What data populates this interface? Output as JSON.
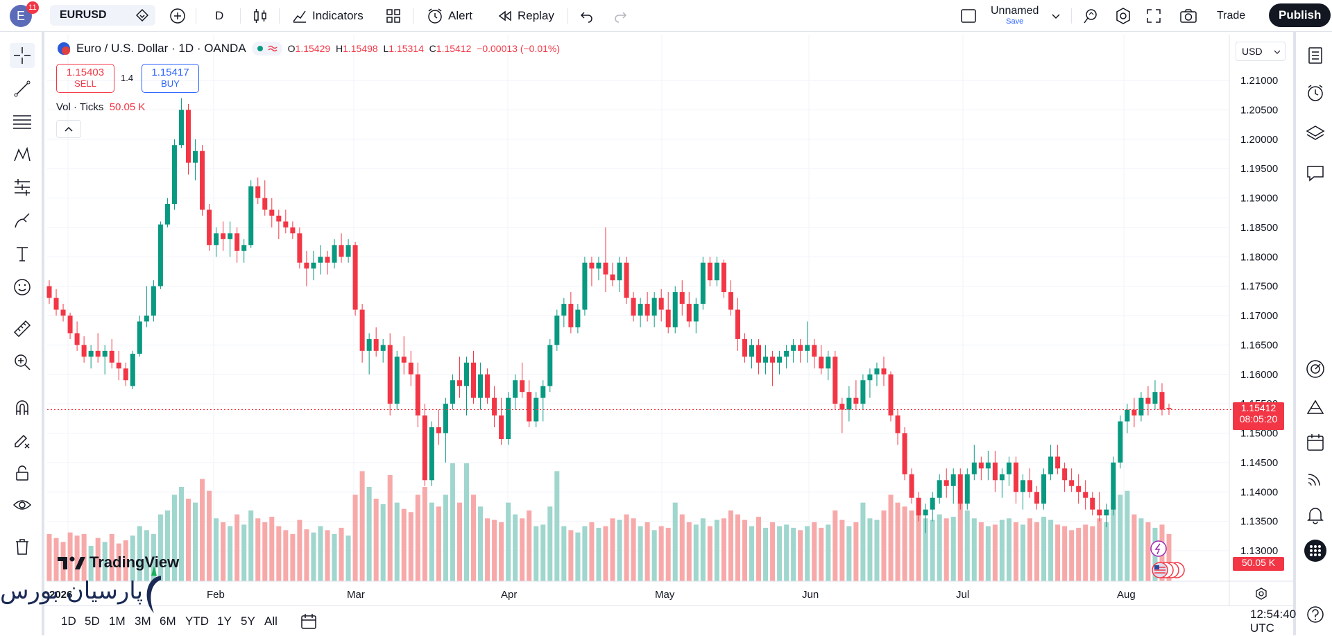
{
  "header": {
    "avatar_letter": "E",
    "notification_count": "11",
    "symbol": "EURUSD",
    "interval": "D",
    "indicators_label": "Indicators",
    "alert_label": "Alert",
    "replay_label": "Replay",
    "layout_name": "Unnamed",
    "layout_save": "Save",
    "trade_label": "Trade",
    "publish_label": "Publish"
  },
  "legend": {
    "title": "Euro / U.S. Dollar · 1D · OANDA",
    "o_label": "O",
    "o": "1.15429",
    "h_label": "H",
    "h": "1.15498",
    "l_label": "L",
    "l": "1.15314",
    "c_label": "C",
    "c": "1.15412",
    "change": "−0.00013 (−0.01%)"
  },
  "trade_panel": {
    "sell_price": "1.15403",
    "sell_label": "SELL",
    "spread": "1.4",
    "buy_price": "1.15417",
    "buy_label": "BUY"
  },
  "volume_legend": {
    "name": "Vol · Ticks",
    "value": "50.05 K"
  },
  "price_axis": {
    "currency": "USD",
    "ticks": [
      "1.21000",
      "1.20500",
      "1.20000",
      "1.19500",
      "1.19000",
      "1.18500",
      "1.18000",
      "1.17500",
      "1.17000",
      "1.16500",
      "1.16000",
      "1.15500",
      "1.15000",
      "1.14500",
      "1.14000",
      "1.13500",
      "1.13000"
    ],
    "last_price": "1.15412",
    "countdown": "08:05:20",
    "volume_tag": "50.05 K"
  },
  "time_axis": {
    "labels": [
      "2026",
      "Feb",
      "Mar",
      "Apr",
      "May",
      "Jun",
      "Jul",
      "Aug"
    ]
  },
  "bottom": {
    "ranges": [
      "1D",
      "5D",
      "1M",
      "3M",
      "6M",
      "YTD",
      "1Y",
      "5Y",
      "All"
    ],
    "clock": "12:54:40 UTC"
  },
  "branding": {
    "tv_logo": "TradingView",
    "watermark": "پارسیان بورس"
  },
  "colors": {
    "up": "#089981",
    "down": "#f23645",
    "up_vol": "#9fd6cd",
    "down_vol": "#f7a9a9",
    "accent": "#2962ff"
  },
  "chart_data": {
    "type": "candlestick",
    "symbol": "EURUSD",
    "timeframe": "1D",
    "ylim": [
      1.128,
      1.213
    ],
    "last_close": 1.15412,
    "bars": [
      [
        1.175,
        1.176,
        1.172,
        1.173,
        60
      ],
      [
        1.173,
        1.1745,
        1.17,
        1.171,
        55
      ],
      [
        1.171,
        1.172,
        1.169,
        1.17,
        50
      ],
      [
        1.17,
        1.1705,
        1.166,
        1.167,
        62
      ],
      [
        1.167,
        1.169,
        1.164,
        1.165,
        58
      ],
      [
        1.165,
        1.1665,
        1.162,
        1.163,
        60
      ],
      [
        1.163,
        1.165,
        1.161,
        1.164,
        45
      ],
      [
        1.164,
        1.167,
        1.162,
        1.163,
        55
      ],
      [
        1.163,
        1.165,
        1.16,
        1.164,
        50
      ],
      [
        1.164,
        1.166,
        1.161,
        1.162,
        60
      ],
      [
        1.162,
        1.164,
        1.159,
        1.161,
        48
      ],
      [
        1.161,
        1.162,
        1.158,
        1.159,
        52
      ],
      [
        1.158,
        1.164,
        1.1575,
        1.1635,
        58
      ],
      [
        1.1635,
        1.17,
        1.163,
        1.169,
        70
      ],
      [
        1.169,
        1.175,
        1.168,
        1.17,
        65
      ],
      [
        1.17,
        1.176,
        1.169,
        1.175,
        60
      ],
      [
        1.175,
        1.186,
        1.1745,
        1.1855,
        85
      ],
      [
        1.1855,
        1.19,
        1.185,
        1.189,
        90
      ],
      [
        1.189,
        1.2,
        1.188,
        1.199,
        110
      ],
      [
        1.199,
        1.207,
        1.1985,
        1.205,
        120
      ],
      [
        1.205,
        1.206,
        1.194,
        1.196,
        105
      ],
      [
        1.196,
        1.2,
        1.193,
        1.198,
        100
      ],
      [
        1.198,
        1.199,
        1.187,
        1.188,
        130
      ],
      [
        1.188,
        1.189,
        1.181,
        1.182,
        115
      ],
      [
        1.182,
        1.185,
        1.18,
        1.184,
        80
      ],
      [
        1.184,
        1.186,
        1.181,
        1.183,
        75
      ],
      [
        1.183,
        1.186,
        1.18,
        1.184,
        70
      ],
      [
        1.184,
        1.185,
        1.179,
        1.181,
        85
      ],
      [
        1.181,
        1.183,
        1.179,
        1.182,
        72
      ],
      [
        1.182,
        1.193,
        1.1815,
        1.192,
        90
      ],
      [
        1.192,
        1.1935,
        1.189,
        1.19,
        80
      ],
      [
        1.19,
        1.193,
        1.187,
        1.188,
        75
      ],
      [
        1.188,
        1.19,
        1.185,
        1.187,
        82
      ],
      [
        1.187,
        1.188,
        1.183,
        1.186,
        70
      ],
      [
        1.186,
        1.188,
        1.184,
        1.185,
        65
      ],
      [
        1.185,
        1.186,
        1.183,
        1.184,
        60
      ],
      [
        1.184,
        1.185,
        1.178,
        1.179,
        78
      ],
      [
        1.179,
        1.181,
        1.175,
        1.178,
        66
      ],
      [
        1.178,
        1.181,
        1.176,
        1.179,
        62
      ],
      [
        1.179,
        1.182,
        1.177,
        1.18,
        70
      ],
      [
        1.18,
        1.181,
        1.177,
        1.179,
        65
      ],
      [
        1.179,
        1.183,
        1.178,
        1.182,
        60
      ],
      [
        1.182,
        1.184,
        1.179,
        1.18,
        68
      ],
      [
        1.18,
        1.183,
        1.179,
        1.182,
        58
      ],
      [
        1.182,
        1.1825,
        1.17,
        1.171,
        110
      ],
      [
        1.171,
        1.172,
        1.162,
        1.164,
        140
      ],
      [
        1.164,
        1.167,
        1.16,
        1.166,
        120
      ],
      [
        1.166,
        1.168,
        1.163,
        1.164,
        105
      ],
      [
        1.164,
        1.166,
        1.162,
        1.165,
        98
      ],
      [
        1.165,
        1.167,
        1.153,
        1.155,
        135
      ],
      [
        1.155,
        1.164,
        1.154,
        1.163,
        100
      ],
      [
        1.163,
        1.1665,
        1.16,
        1.162,
        92
      ],
      [
        1.162,
        1.164,
        1.158,
        1.16,
        88
      ],
      [
        1.16,
        1.162,
        1.151,
        1.153,
        110
      ],
      [
        1.153,
        1.155,
        1.141,
        1.142,
        120
      ],
      [
        1.142,
        1.152,
        1.141,
        1.151,
        100
      ],
      [
        1.151,
        1.154,
        1.148,
        1.15,
        95
      ],
      [
        1.15,
        1.156,
        1.145,
        1.155,
        110
      ],
      [
        1.155,
        1.16,
        1.154,
        1.159,
        150
      ],
      [
        1.159,
        1.163,
        1.156,
        1.158,
        100
      ],
      [
        1.158,
        1.163,
        1.153,
        1.162,
        150
      ],
      [
        1.162,
        1.164,
        1.155,
        1.156,
        110
      ],
      [
        1.156,
        1.162,
        1.154,
        1.16,
        95
      ],
      [
        1.16,
        1.161,
        1.155,
        1.156,
        80
      ],
      [
        1.156,
        1.158,
        1.151,
        1.153,
        78
      ],
      [
        1.153,
        1.156,
        1.148,
        1.149,
        75
      ],
      [
        1.149,
        1.157,
        1.148,
        1.156,
        100
      ],
      [
        1.156,
        1.16,
        1.154,
        1.159,
        85
      ],
      [
        1.159,
        1.162,
        1.156,
        1.157,
        80
      ],
      [
        1.157,
        1.159,
        1.151,
        1.152,
        90
      ],
      [
        1.152,
        1.157,
        1.151,
        1.156,
        70
      ],
      [
        1.156,
        1.159,
        1.152,
        1.158,
        72
      ],
      [
        1.158,
        1.166,
        1.157,
        1.165,
        95
      ],
      [
        1.165,
        1.171,
        1.164,
        1.17,
        140
      ],
      [
        1.17,
        1.173,
        1.168,
        1.172,
        70
      ],
      [
        1.172,
        1.174,
        1.167,
        1.168,
        65
      ],
      [
        1.168,
        1.172,
        1.167,
        1.171,
        62
      ],
      [
        1.171,
        1.18,
        1.17,
        1.179,
        70
      ],
      [
        1.179,
        1.18,
        1.175,
        1.178,
        75
      ],
      [
        1.178,
        1.18,
        1.176,
        1.179,
        68
      ],
      [
        1.179,
        1.185,
        1.174,
        1.177,
        70
      ],
      [
        1.177,
        1.179,
        1.175,
        1.176,
        80
      ],
      [
        1.176,
        1.18,
        1.174,
        1.179,
        78
      ],
      [
        1.179,
        1.18,
        1.172,
        1.173,
        85
      ],
      [
        1.173,
        1.174,
        1.169,
        1.17,
        80
      ],
      [
        1.17,
        1.173,
        1.168,
        1.172,
        70
      ],
      [
        1.172,
        1.174,
        1.169,
        1.17,
        75
      ],
      [
        1.17,
        1.174,
        1.168,
        1.173,
        65
      ],
      [
        1.173,
        1.1745,
        1.169,
        1.171,
        70
      ],
      [
        1.171,
        1.174,
        1.167,
        1.168,
        68
      ],
      [
        1.168,
        1.175,
        1.167,
        1.174,
        100
      ],
      [
        1.174,
        1.176,
        1.17,
        1.172,
        85
      ],
      [
        1.172,
        1.174,
        1.168,
        1.169,
        75
      ],
      [
        1.169,
        1.173,
        1.167,
        1.172,
        72
      ],
      [
        1.172,
        1.18,
        1.171,
        1.179,
        80
      ],
      [
        1.179,
        1.18,
        1.175,
        1.176,
        70
      ],
      [
        1.176,
        1.18,
        1.175,
        1.179,
        78
      ],
      [
        1.179,
        1.1795,
        1.173,
        1.174,
        80
      ],
      [
        1.174,
        1.176,
        1.17,
        1.171,
        90
      ],
      [
        1.171,
        1.173,
        1.164,
        1.166,
        85
      ],
      [
        1.166,
        1.167,
        1.162,
        1.163,
        78
      ],
      [
        1.163,
        1.166,
        1.161,
        1.165,
        70
      ],
      [
        1.165,
        1.166,
        1.16,
        1.162,
        82
      ],
      [
        1.162,
        1.165,
        1.16,
        1.163,
        68
      ],
      [
        1.163,
        1.164,
        1.158,
        1.162,
        75
      ],
      [
        1.162,
        1.164,
        1.16,
        1.163,
        70
      ],
      [
        1.163,
        1.165,
        1.161,
        1.164,
        72
      ],
      [
        1.164,
        1.166,
        1.162,
        1.165,
        68
      ],
      [
        1.165,
        1.166,
        1.162,
        1.164,
        65
      ],
      [
        1.164,
        1.169,
        1.162,
        1.165,
        70
      ],
      [
        1.165,
        1.166,
        1.161,
        1.163,
        75
      ],
      [
        1.163,
        1.165,
        1.16,
        1.161,
        68
      ],
      [
        1.161,
        1.164,
        1.159,
        1.163,
        72
      ],
      [
        1.163,
        1.164,
        1.154,
        1.155,
        90
      ],
      [
        1.155,
        1.156,
        1.15,
        1.154,
        78
      ],
      [
        1.154,
        1.158,
        1.152,
        1.156,
        70
      ],
      [
        1.156,
        1.159,
        1.154,
        1.155,
        75
      ],
      [
        1.155,
        1.16,
        1.154,
        1.159,
        100
      ],
      [
        1.159,
        1.161,
        1.156,
        1.16,
        80
      ],
      [
        1.16,
        1.162,
        1.158,
        1.161,
        78
      ],
      [
        1.161,
        1.163,
        1.158,
        1.16,
        90
      ],
      [
        1.16,
        1.1605,
        1.152,
        1.153,
        110
      ],
      [
        1.153,
        1.154,
        1.148,
        1.15,
        100
      ],
      [
        1.15,
        1.151,
        1.142,
        1.143,
        95
      ],
      [
        1.143,
        1.144,
        1.138,
        1.139,
        90
      ],
      [
        1.139,
        1.14,
        1.135,
        1.136,
        85
      ],
      [
        1.136,
        1.138,
        1.133,
        1.137,
        80
      ],
      [
        1.137,
        1.14,
        1.135,
        1.139,
        78
      ],
      [
        1.139,
        1.143,
        1.138,
        1.142,
        85
      ],
      [
        1.142,
        1.144,
        1.139,
        1.141,
        80
      ],
      [
        1.141,
        1.144,
        1.138,
        1.143,
        82
      ],
      [
        1.143,
        1.144,
        1.137,
        1.138,
        100
      ],
      [
        1.138,
        1.144,
        1.137,
        1.143,
        90
      ],
      [
        1.143,
        1.148,
        1.142,
        1.145,
        80
      ],
      [
        1.145,
        1.146,
        1.142,
        1.144,
        75
      ],
      [
        1.144,
        1.147,
        1.142,
        1.145,
        70
      ],
      [
        1.145,
        1.147,
        1.14,
        1.142,
        72
      ],
      [
        1.142,
        1.144,
        1.139,
        1.143,
        78
      ],
      [
        1.143,
        1.146,
        1.141,
        1.145,
        80
      ],
      [
        1.145,
        1.146,
        1.138,
        1.14,
        75
      ],
      [
        1.14,
        1.143,
        1.137,
        1.142,
        72
      ],
      [
        1.142,
        1.144,
        1.139,
        1.14,
        80
      ],
      [
        1.14,
        1.141,
        1.137,
        1.138,
        75
      ],
      [
        1.138,
        1.144,
        1.137,
        1.143,
        82
      ],
      [
        1.143,
        1.148,
        1.142,
        1.146,
        78
      ],
      [
        1.146,
        1.148,
        1.143,
        1.144,
        72
      ],
      [
        1.144,
        1.145,
        1.14,
        1.142,
        70
      ],
      [
        1.142,
        1.144,
        1.14,
        1.141,
        65
      ],
      [
        1.141,
        1.143,
        1.138,
        1.14,
        68
      ],
      [
        1.14,
        1.142,
        1.137,
        1.139,
        72
      ],
      [
        1.139,
        1.14,
        1.136,
        1.137,
        70
      ],
      [
        1.137,
        1.14,
        1.135,
        1.136,
        80
      ],
      [
        1.136,
        1.138,
        1.134,
        1.137,
        75
      ],
      [
        1.137,
        1.146,
        1.136,
        1.145,
        100
      ],
      [
        1.145,
        1.153,
        1.144,
        1.152,
        110
      ],
      [
        1.152,
        1.155,
        1.15,
        1.154,
        115
      ],
      [
        1.154,
        1.156,
        1.151,
        1.153,
        85
      ],
      [
        1.153,
        1.157,
        1.152,
        1.156,
        80
      ],
      [
        1.156,
        1.158,
        1.153,
        1.155,
        75
      ],
      [
        1.155,
        1.159,
        1.154,
        1.157,
        68
      ],
      [
        1.157,
        1.1585,
        1.153,
        1.154,
        72
      ],
      [
        1.1543,
        1.155,
        1.1531,
        1.1541,
        60
      ]
    ]
  }
}
